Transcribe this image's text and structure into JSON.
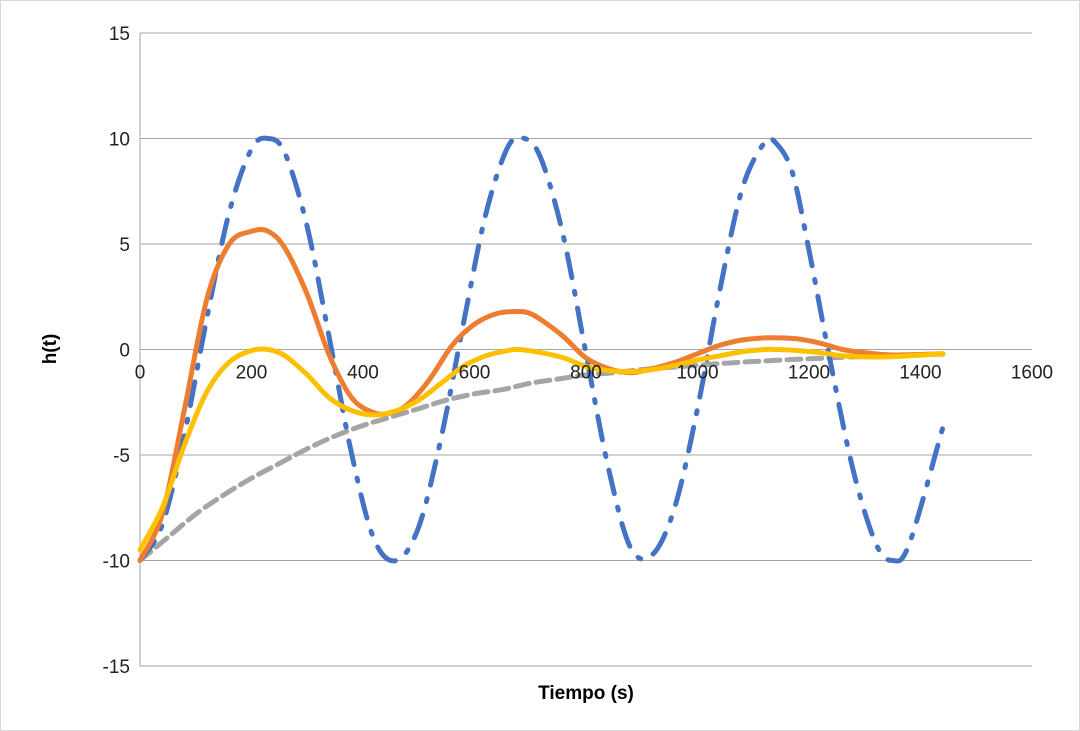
{
  "chart_data": {
    "type": "line",
    "title": "",
    "xlabel": "Tiempo (s)",
    "ylabel": "h(t)",
    "xlim": [
      0,
      1600
    ],
    "ylim": [
      -15,
      15
    ],
    "x_ticks": [
      0,
      200,
      400,
      600,
      800,
      1000,
      1200,
      1400,
      1600
    ],
    "y_ticks": [
      -15,
      -10,
      -5,
      0,
      5,
      10,
      15
    ],
    "x_tick_labels": [
      "0",
      "200",
      "400",
      "600",
      "800",
      "1000",
      "1200",
      "1400",
      "1600"
    ],
    "y_tick_labels": [
      "-15",
      "-10",
      "-5",
      "0",
      "5",
      "10",
      "15"
    ],
    "grid": "horizontal",
    "legend": "none",
    "series": [
      {
        "color": "#4472C4",
        "style": "dash-dot",
        "x": [
          0,
          40,
          80,
          120,
          160,
          200,
          230,
          260,
          300,
          340,
          380,
          420,
          460,
          500,
          540,
          580,
          620,
          660,
          690,
          720,
          760,
          800,
          840,
          880,
          920,
          960,
          1000,
          1040,
          1080,
          1120,
          1140,
          1170,
          1200,
          1240,
          1280,
          1320,
          1350,
          1380,
          1440
        ],
        "y": [
          -10,
          -8.3,
          -4.0,
          1.5,
          6.5,
          9.5,
          10.0,
          9.3,
          5.8,
          0.5,
          -5.0,
          -9.0,
          -10.0,
          -8.4,
          -4.2,
          1.2,
          6.4,
          9.6,
          10.0,
          9.0,
          5.3,
          -0.2,
          -5.6,
          -9.4,
          -9.7,
          -7.4,
          -2.8,
          2.8,
          7.6,
          9.8,
          9.8,
          8.4,
          4.7,
          -0.8,
          -5.8,
          -9.2,
          -10.0,
          -9.2,
          -3.7
        ]
      },
      {
        "color": "#ED7D31",
        "style": "solid",
        "x": [
          0,
          40,
          80,
          120,
          160,
          200,
          230,
          260,
          300,
          340,
          380,
          420,
          450,
          480,
          520,
          560,
          600,
          640,
          680,
          700,
          720,
          760,
          800,
          840,
          880,
          920,
          960,
          1000,
          1040,
          1080,
          1120,
          1150,
          1180,
          1220,
          1260,
          1300,
          1340,
          1380,
          1440
        ],
        "y": [
          -10,
          -7.8,
          -2.8,
          2.4,
          5.0,
          5.6,
          5.6,
          4.8,
          2.6,
          -0.3,
          -2.3,
          -3.0,
          -3.0,
          -2.6,
          -1.4,
          0.2,
          1.2,
          1.7,
          1.8,
          1.7,
          1.4,
          0.6,
          -0.4,
          -0.9,
          -1.1,
          -0.9,
          -0.6,
          -0.2,
          0.2,
          0.45,
          0.55,
          0.55,
          0.5,
          0.3,
          0.0,
          -0.15,
          -0.25,
          -0.25,
          -0.2
        ]
      },
      {
        "color": "#FFC000",
        "style": "solid",
        "x": [
          0,
          40,
          80,
          120,
          160,
          200,
          230,
          260,
          300,
          340,
          380,
          420,
          460,
          500,
          540,
          580,
          620,
          660,
          680,
          720,
          760,
          800,
          840,
          880,
          920,
          960,
          1000,
          1040,
          1080,
          1120,
          1140,
          1180,
          1220,
          1260,
          1300,
          1340,
          1380,
          1440
        ],
        "y": [
          -9.5,
          -7.5,
          -4.5,
          -2.0,
          -0.6,
          -0.05,
          0.0,
          -0.3,
          -1.2,
          -2.3,
          -2.9,
          -3.1,
          -2.9,
          -2.4,
          -1.6,
          -0.8,
          -0.3,
          -0.05,
          0.0,
          -0.15,
          -0.4,
          -0.8,
          -1.0,
          -1.05,
          -0.95,
          -0.75,
          -0.5,
          -0.3,
          -0.1,
          0.0,
          0.0,
          -0.05,
          -0.15,
          -0.3,
          -0.35,
          -0.35,
          -0.3,
          -0.2
        ]
      },
      {
        "color": "#A5A5A5",
        "style": "dashed",
        "x": [
          0,
          50,
          100,
          150,
          200,
          250,
          300,
          350,
          400,
          450,
          500,
          550,
          600,
          650,
          700,
          750,
          800,
          850,
          900,
          950,
          1000,
          1050,
          1100,
          1150,
          1200,
          1250,
          1300,
          1350,
          1400,
          1440
        ],
        "y": [
          -10,
          -8.9,
          -7.8,
          -6.9,
          -6.1,
          -5.4,
          -4.7,
          -4.1,
          -3.6,
          -3.2,
          -2.8,
          -2.4,
          -2.1,
          -1.9,
          -1.6,
          -1.4,
          -1.2,
          -1.1,
          -0.95,
          -0.85,
          -0.75,
          -0.65,
          -0.57,
          -0.5,
          -0.44,
          -0.38,
          -0.33,
          -0.29,
          -0.25,
          -0.22
        ]
      }
    ]
  }
}
